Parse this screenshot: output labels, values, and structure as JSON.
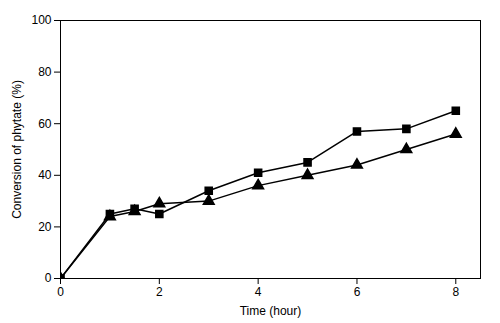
{
  "chart_data": {
    "type": "line",
    "xlabel": "Time (hour)",
    "ylabel": "Conversion of phytate (%)",
    "x": [
      0,
      1,
      1.5,
      2,
      3,
      4,
      5,
      6,
      7,
      8
    ],
    "series": [
      {
        "color": "#000000",
        "marker": "square",
        "values": [
          0,
          25,
          27,
          25,
          34,
          41,
          45,
          57,
          58,
          65
        ]
      },
      {
        "color": "#000000",
        "marker": "triangle",
        "values": [
          0,
          24,
          26,
          29,
          30,
          36,
          40,
          44,
          50,
          56
        ]
      }
    ],
    "xlim": [
      0,
      8.5
    ],
    "ylim": [
      0,
      100
    ],
    "xticks": [
      0,
      2,
      4,
      6,
      8
    ],
    "yticks": [
      0,
      20,
      40,
      60,
      80,
      100
    ],
    "grid": false
  }
}
